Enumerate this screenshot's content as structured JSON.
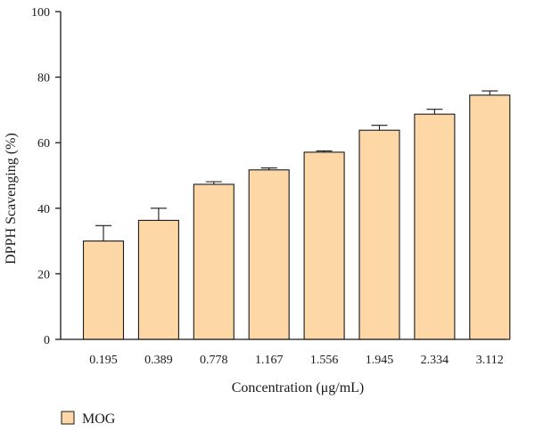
{
  "chart_data": {
    "type": "bar",
    "title": "",
    "xlabel": "Concentration (μg/mL)",
    "ylabel": "DPPH Scavenging (%)",
    "ylim": [
      0,
      100
    ],
    "yticks": [
      0,
      20,
      40,
      60,
      80,
      100
    ],
    "grid": false,
    "legend_position": "bottom-left",
    "categories": [
      "0.195",
      "0.389",
      "0.778",
      "1.167",
      "1.556",
      "1.945",
      "2.334",
      "3.112"
    ],
    "series": [
      {
        "name": "MOG",
        "color": "#fdd7a5",
        "values": [
          30.0,
          36.3,
          47.3,
          51.7,
          57.1,
          63.8,
          68.7,
          74.5
        ],
        "errors": [
          4.7,
          3.7,
          0.8,
          0.6,
          0.4,
          1.5,
          1.5,
          1.3
        ]
      }
    ]
  }
}
